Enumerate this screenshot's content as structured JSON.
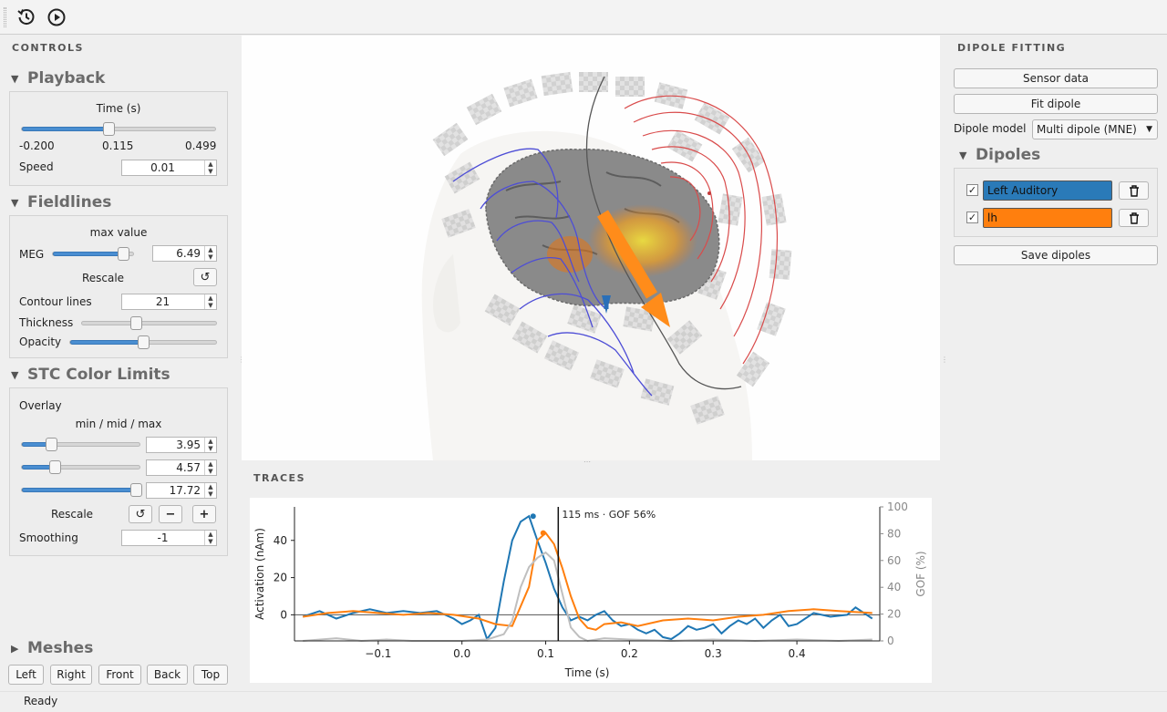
{
  "toolbar": {
    "history_icon": "history-icon",
    "play_icon": "play-icon"
  },
  "controls": {
    "title": "CONTROLS",
    "playback": {
      "title": "Playback",
      "time_label": "Time (s)",
      "time_min": "-0.200",
      "time_current": "0.115",
      "time_max": "0.499",
      "time_fraction": 0.45,
      "speed_label": "Speed",
      "speed_value": "0.01"
    },
    "fieldlines": {
      "title": "Fieldlines",
      "max_value_label": "max value",
      "meg_label": "MEG",
      "meg_value": "6.49",
      "meg_fraction": 0.87,
      "rescale_label": "Rescale",
      "contour_label": "Contour lines",
      "contour_value": "21",
      "thickness_label": "Thickness",
      "thickness_fraction": 0.4,
      "opacity_label": "Opacity",
      "opacity_fraction": 0.5
    },
    "stc": {
      "title": "STC Color Limits",
      "overlay_label": "Overlay",
      "minmidmax_label": "min / mid / max",
      "min_value": "3.95",
      "min_fraction": 0.25,
      "mid_value": "4.57",
      "mid_fraction": 0.28,
      "max_value": "17.72",
      "max_fraction": 0.97,
      "rescale_label": "Rescale",
      "smoothing_label": "Smoothing",
      "smoothing_value": "-1"
    },
    "meshes": {
      "title": "Meshes",
      "buttons": [
        "Left",
        "Right",
        "Front",
        "Back",
        "Top"
      ]
    }
  },
  "traces": {
    "title": "TRACES",
    "cursor_label": "115 ms · GOF 56%"
  },
  "dipole_fitting": {
    "title": "DIPOLE FITTING",
    "sensor_data_label": "Sensor data",
    "fit_dipole_label": "Fit dipole",
    "model_label": "Dipole model",
    "model_value": "Multi dipole (MNE)",
    "dipoles_title": "Dipoles",
    "dipoles": [
      {
        "name": "Left Auditory",
        "checked": "✓",
        "color": "#2a7ab8"
      },
      {
        "name": "lh",
        "checked": "✓",
        "color": "#ff7f0e"
      }
    ],
    "save_label": "Save dipoles"
  },
  "status": {
    "text": "Ready"
  },
  "chart_data": {
    "type": "line",
    "xlabel": "Time (s)",
    "ylabel": "Activation (nAm)",
    "y2label": "GOF (%)",
    "xlim": [
      -0.2,
      0.499
    ],
    "ylim": [
      -14,
      58
    ],
    "y2lim": [
      0,
      100
    ],
    "xticks": [
      -0.1,
      0.0,
      0.1,
      0.2,
      0.3,
      0.4
    ],
    "xtick_labels": [
      "−0.1",
      "0.0",
      "0.1",
      "0.2",
      "0.3",
      "0.4"
    ],
    "yticks": [
      0,
      20,
      40
    ],
    "yticks2": [
      0,
      20,
      40,
      60,
      80,
      100
    ],
    "cursor_x": 0.115,
    "series": [
      {
        "axis": "left",
        "color": "#1f77b4",
        "x": [
          -0.19,
          -0.17,
          -0.15,
          -0.13,
          -0.11,
          -0.09,
          -0.07,
          -0.05,
          -0.03,
          -0.01,
          0.0,
          0.01,
          0.02,
          0.03,
          0.04,
          0.05,
          0.06,
          0.07,
          0.08,
          0.09,
          0.1,
          0.11,
          0.12,
          0.13,
          0.14,
          0.15,
          0.16,
          0.17,
          0.18,
          0.19,
          0.2,
          0.21,
          0.22,
          0.23,
          0.24,
          0.25,
          0.26,
          0.27,
          0.28,
          0.29,
          0.3,
          0.31,
          0.32,
          0.33,
          0.34,
          0.35,
          0.36,
          0.37,
          0.38,
          0.39,
          0.4,
          0.42,
          0.44,
          0.46,
          0.47,
          0.49
        ],
        "y": [
          -1,
          2,
          -2,
          1,
          3,
          1,
          2,
          1,
          2,
          -2,
          -5,
          -3,
          0,
          -13,
          -7,
          18,
          40,
          50,
          53,
          40,
          28,
          14,
          4,
          -3,
          -1,
          -3,
          0,
          2,
          -3,
          -6,
          -5,
          -8,
          -10,
          -8,
          -12,
          -13,
          -10,
          -6,
          -8,
          -7,
          -5,
          -10,
          -6,
          -3,
          -5,
          -2,
          -7,
          -3,
          0,
          -6,
          -5,
          1,
          -1,
          0,
          4,
          -2
        ]
      },
      {
        "axis": "left",
        "color": "#ff7f0e",
        "x": [
          -0.19,
          -0.16,
          -0.13,
          -0.1,
          -0.07,
          -0.04,
          -0.01,
          0.02,
          0.04,
          0.06,
          0.08,
          0.09,
          0.1,
          0.11,
          0.12,
          0.13,
          0.14,
          0.15,
          0.16,
          0.17,
          0.19,
          0.21,
          0.24,
          0.27,
          0.3,
          0.33,
          0.36,
          0.39,
          0.42,
          0.45,
          0.49
        ],
        "y": [
          -1,
          1,
          2,
          1,
          0,
          1,
          0,
          -2,
          -5,
          -6,
          15,
          40,
          44,
          38,
          25,
          10,
          -2,
          -7,
          -8,
          -5,
          -4,
          -6,
          -3,
          -2,
          -3,
          -1,
          0,
          2,
          3,
          2,
          1
        ]
      },
      {
        "axis": "right",
        "color": "#bfbfbf",
        "x": [
          -0.19,
          -0.15,
          -0.12,
          -0.09,
          -0.06,
          -0.03,
          0.0,
          0.03,
          0.05,
          0.06,
          0.07,
          0.08,
          0.09,
          0.1,
          0.11,
          0.12,
          0.13,
          0.14,
          0.15,
          0.17,
          0.2,
          0.25,
          0.3,
          0.35,
          0.4,
          0.45,
          0.49
        ],
        "y": [
          0,
          2,
          0,
          1,
          0,
          0,
          0,
          1,
          5,
          15,
          40,
          55,
          62,
          66,
          60,
          35,
          10,
          3,
          0,
          2,
          1,
          0,
          1,
          0,
          1,
          0,
          1
        ]
      }
    ]
  }
}
